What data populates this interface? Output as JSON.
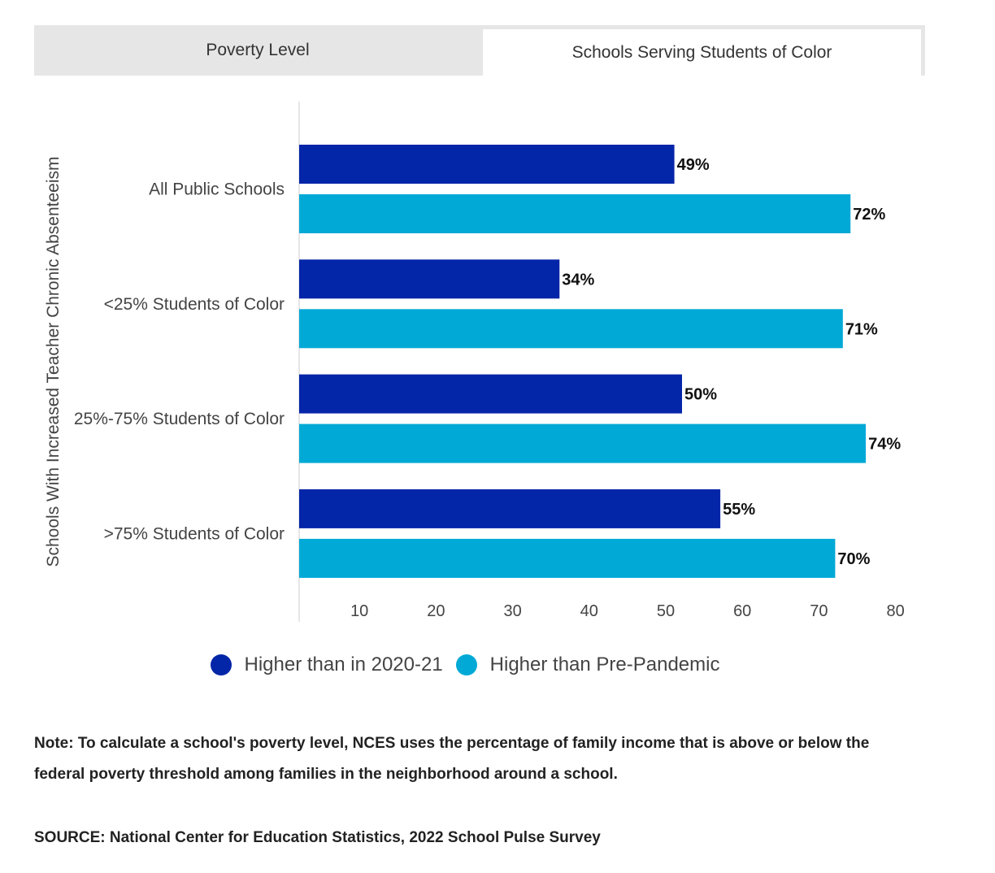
{
  "tabs": [
    {
      "label": "Poverty Level"
    },
    {
      "label": "Schools Serving Students of Color"
    }
  ],
  "colors": {
    "series1": "#0325a8",
    "series2": "#00a9d6"
  },
  "chart_data": {
    "type": "bar",
    "orientation": "horizontal",
    "ylabel": "Schools With Increased Teacher Chronic Absenteeism",
    "categories": [
      "All Public Schools",
      "<25% Students of Color",
      "25%-75% Students of Color",
      ">75% Students of Color"
    ],
    "series": [
      {
        "name": "Higher than in 2020-21",
        "values": [
          49,
          34,
          50,
          55
        ],
        "labels": [
          "49%",
          "34%",
          "50%",
          "55%"
        ]
      },
      {
        "name": "Higher than Pre-Pandemic",
        "values": [
          72,
          71,
          74,
          70
        ],
        "labels": [
          "72%",
          "71%",
          "74%",
          "70%"
        ]
      }
    ],
    "xticks": [
      "10",
      "20",
      "30",
      "40",
      "50",
      "60",
      "70",
      "80"
    ],
    "xlim": [
      0,
      80
    ],
    "grid": false,
    "legend": "bottom"
  },
  "note": "Note: To calculate a school's poverty level, NCES uses the percentage of family income that is above or below the federal poverty threshold among families in the neighborhood around a school.",
  "source": "SOURCE: National Center for Education Statistics, 2022 School Pulse Survey"
}
